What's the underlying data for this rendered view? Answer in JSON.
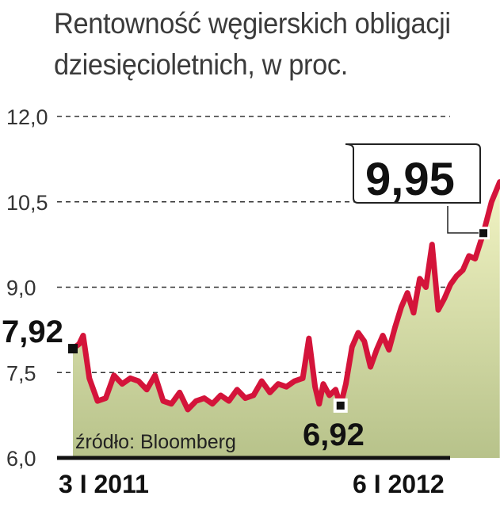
{
  "title_line1": "Rentowność węgierskich obligacji",
  "title_line2": "dziesięcioletnich, w proc.",
  "source": "źródło: Bloomberg",
  "colors": {
    "line": "#d4143a",
    "area_top": "#f2f4c4",
    "area_bottom": "#b7c28a",
    "axis": "#111111",
    "grid": "#333333"
  },
  "chart_data": {
    "type": "area",
    "ylim": [
      6.0,
      12.0
    ],
    "yticks": [
      "12,0",
      "10,5",
      "9,0",
      "7,5",
      "6,0"
    ],
    "ytick_values": [
      12.0,
      10.5,
      9.0,
      7.5,
      6.0
    ],
    "xtick_labels": [
      "3 I 2011",
      "6 I 2012"
    ],
    "xtick_positions": [
      0,
      1
    ],
    "grid": "dashed horizontal",
    "annotations": [
      {
        "label": "7,92",
        "x": 0,
        "value": 7.92
      },
      {
        "label": "6,92",
        "x": 0.652,
        "value": 6.92
      },
      {
        "label": "9,95",
        "x": 1.0,
        "value": 9.95
      }
    ],
    "series": [
      {
        "x": [
          0,
          0.015,
          0.025,
          0.04,
          0.06,
          0.08,
          0.1,
          0.12,
          0.14,
          0.16,
          0.18,
          0.2,
          0.22,
          0.24,
          0.26,
          0.28,
          0.3,
          0.32,
          0.34,
          0.36,
          0.38,
          0.4,
          0.42,
          0.44,
          0.46,
          0.48,
          0.5,
          0.52,
          0.54,
          0.56,
          0.575,
          0.59,
          0.6,
          0.61,
          0.625,
          0.64,
          0.652,
          0.665,
          0.68,
          0.695,
          0.71,
          0.725,
          0.74,
          0.755,
          0.77,
          0.785,
          0.8,
          0.815,
          0.83,
          0.845,
          0.86,
          0.875,
          0.89,
          0.905,
          0.92,
          0.935,
          0.95,
          0.965,
          0.98,
          1.0,
          1.02,
          1.04
        ],
        "values": [
          7.92,
          8.0,
          8.15,
          7.4,
          7.0,
          7.05,
          7.45,
          7.3,
          7.4,
          7.35,
          7.2,
          7.45,
          7.0,
          6.95,
          7.15,
          6.85,
          7.0,
          7.05,
          6.95,
          7.1,
          7.0,
          7.2,
          7.05,
          7.1,
          7.35,
          7.15,
          7.3,
          7.25,
          7.35,
          7.4,
          8.1,
          7.25,
          6.95,
          7.3,
          7.1,
          7.2,
          6.92,
          7.3,
          7.95,
          8.2,
          8.05,
          7.6,
          7.9,
          8.15,
          7.9,
          8.3,
          8.65,
          8.9,
          8.55,
          9.15,
          9.0,
          9.75,
          8.6,
          8.8,
          9.05,
          9.2,
          9.3,
          9.55,
          9.5,
          9.95,
          10.5,
          10.85
        ]
      }
    ]
  }
}
